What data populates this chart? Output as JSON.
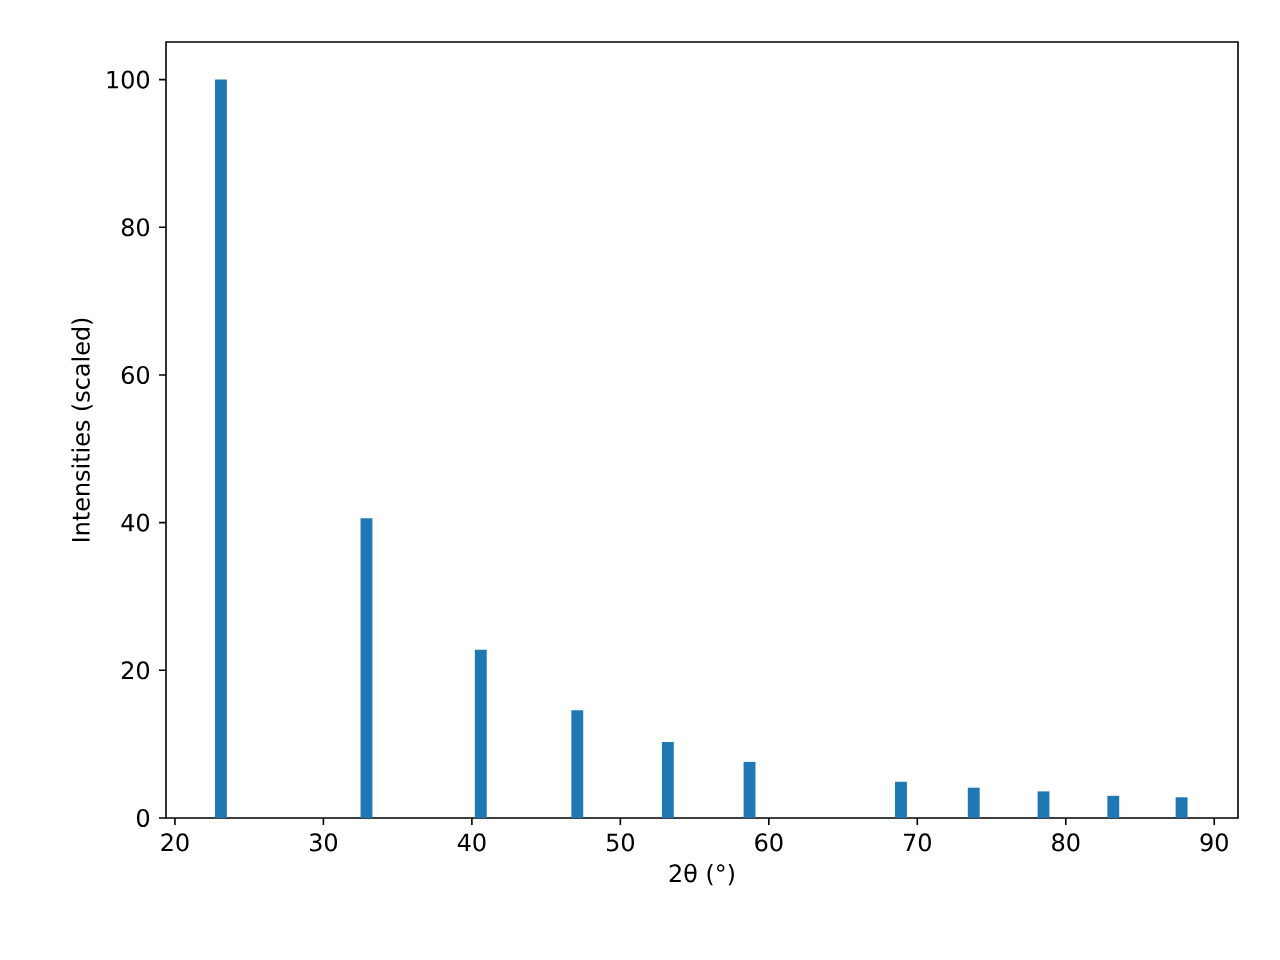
{
  "chart_data": {
    "type": "bar",
    "xlabel": "2θ (°)",
    "ylabel": "Intensities (scaled)",
    "x": [
      23.1,
      32.9,
      40.6,
      47.1,
      53.2,
      58.7,
      68.9,
      73.8,
      78.5,
      83.2,
      87.8
    ],
    "values": [
      100,
      40.6,
      22.8,
      14.6,
      10.3,
      7.6,
      4.9,
      4.1,
      3.6,
      3.0,
      2.8
    ],
    "color": "#1f77b4",
    "xlim": [
      19.4,
      91.6
    ],
    "ylim": [
      0,
      105.1
    ],
    "xticks": [
      20,
      30,
      40,
      50,
      60,
      70,
      80,
      90
    ],
    "yticks": [
      0,
      20,
      40,
      60,
      80,
      100
    ]
  }
}
